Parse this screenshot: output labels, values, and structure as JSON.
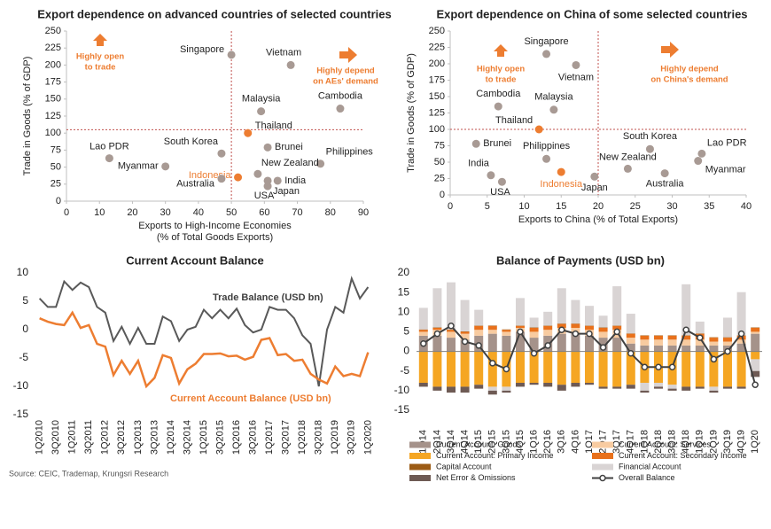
{
  "source": "Source: CEIC, Trademap, Krungsri Research",
  "chart_data": [
    {
      "type": "scatter",
      "title": "Export dependence on advanced countries of selected countries",
      "xlabel": [
        "Exports to High-Income Economies",
        "(% of Total Goods Exports)"
      ],
      "ylabel": "Trade in Goods (% of GDP)",
      "xlim": [
        0,
        90
      ],
      "xticks": [
        0,
        10,
        20,
        30,
        40,
        50,
        60,
        70,
        80,
        90
      ],
      "ylim": [
        0,
        250
      ],
      "yticks": [
        0,
        25,
        50,
        75,
        100,
        125,
        150,
        175,
        200,
        225,
        250
      ],
      "labels": [
        "Singapore",
        "Vietnam",
        "Malaysia",
        "Cambodia",
        "Thailand",
        "Brunei",
        "South Korea",
        "Philippines",
        "Lao PDR",
        "Myanmar",
        "Indonesia",
        "New Zealand",
        "Australia",
        "India",
        "USA",
        "Japan"
      ],
      "x": [
        50,
        68,
        59,
        83,
        55,
        61,
        47,
        77,
        13,
        30,
        52,
        58,
        47,
        64,
        61,
        61
      ],
      "y": [
        215,
        200,
        132,
        136,
        100,
        79,
        70,
        55,
        63,
        51,
        35,
        40,
        33,
        30,
        22,
        30
      ],
      "colors": [
        "#a89a94",
        "#a89a94",
        "#a89a94",
        "#a89a94",
        "#ed7d31",
        "#a89a94",
        "#a89a94",
        "#a89a94",
        "#a89a94",
        "#a89a94",
        "#ed7d31",
        "#a89a94",
        "#a89a94",
        "#a89a94",
        "#a89a94",
        "#a89a94"
      ],
      "label_colors": [
        "#222",
        "#222",
        "#222",
        "#222",
        "#222",
        "#222",
        "#222",
        "#222",
        "#222",
        "#222",
        "#ed7d31",
        "#222",
        "#222",
        "#222",
        "#222",
        "#222"
      ],
      "ref_x": 50,
      "ref_y": 105,
      "annotations": [
        [
          "Highly open",
          "to trade"
        ],
        [
          "Highly depend",
          "on AEs' demand"
        ]
      ]
    },
    {
      "type": "scatter",
      "title": "Export dependence on China of some selected countries",
      "xlabel": [
        "Exports to China (% of Total Exports)"
      ],
      "ylabel": "Trade in Goods (% of GDP)",
      "xlim": [
        0,
        40
      ],
      "xticks": [
        0,
        5,
        10,
        15,
        20,
        25,
        30,
        35,
        40
      ],
      "ylim": [
        0,
        250
      ],
      "yticks": [
        0,
        25,
        50,
        75,
        100,
        125,
        150,
        175,
        200,
        225,
        250
      ],
      "labels": [
        "Singapore",
        "Vietnam",
        "Cambodia",
        "Malaysia",
        "Thailand",
        "Brunei",
        "South Korea",
        "Lao PDR",
        "Philippines",
        "Myanmar",
        "New Zealand",
        "Japan",
        "Australia",
        "India",
        "USA",
        "Indonesia"
      ],
      "x": [
        13,
        17,
        6.5,
        14,
        12,
        3.5,
        27,
        34,
        13,
        33.5,
        24,
        19.5,
        29,
        5.5,
        7,
        15
      ],
      "y": [
        215,
        198,
        135,
        130,
        100,
        78,
        70,
        63,
        55,
        52,
        40,
        28,
        33,
        30,
        20,
        35
      ],
      "colors": [
        "#a89a94",
        "#a89a94",
        "#a89a94",
        "#a89a94",
        "#ed7d31",
        "#a89a94",
        "#a89a94",
        "#a89a94",
        "#a89a94",
        "#a89a94",
        "#a89a94",
        "#a89a94",
        "#a89a94",
        "#a89a94",
        "#a89a94",
        "#ed7d31"
      ],
      "label_colors": [
        "#222",
        "#222",
        "#222",
        "#222",
        "#222",
        "#222",
        "#222",
        "#222",
        "#222",
        "#222",
        "#222",
        "#222",
        "#222",
        "#222",
        "#222",
        "#ed7d31"
      ],
      "ref_x": 20,
      "ref_y": 100,
      "annotations": [
        [
          "Highly open",
          "to trade"
        ],
        [
          "Highly depend",
          "on China's demand"
        ]
      ]
    },
    {
      "type": "line",
      "title": "Current Account Balance",
      "categories": [
        "1Q2010",
        null,
        "3Q2010",
        null,
        "1Q2011",
        null,
        "3Q2011",
        null,
        "1Q2012",
        null,
        "3Q2012",
        null,
        "1Q2013",
        null,
        "3Q2013",
        null,
        "1Q2014",
        null,
        "3Q2014",
        null,
        "1Q2015",
        null,
        "3Q2015",
        null,
        "1Q2016",
        null,
        "3Q2016",
        null,
        "1Q2017",
        null,
        "3Q2017",
        null,
        "1Q2018",
        null,
        "3Q2018",
        null,
        "1Q2019",
        null,
        "3Q2019",
        null,
        "1Q2020"
      ],
      "ylim": [
        -15,
        10
      ],
      "yticks": [
        -15,
        -10,
        -5,
        0,
        5,
        10
      ],
      "series": [
        {
          "name": "Trade Balance (USD bn)",
          "color": "#595959",
          "values": [
            5.5,
            4,
            4,
            8.5,
            7,
            8.3,
            7.5,
            4,
            3,
            -2,
            0.5,
            -2.5,
            0.3,
            -2.5,
            -2.5,
            2.3,
            1.5,
            -2,
            0,
            0.5,
            3.5,
            2,
            3.5,
            2,
            3.7,
            0.8,
            -0.5,
            0,
            4,
            3.5,
            3.5,
            2,
            -1,
            -2.5,
            -10,
            0,
            4,
            3,
            9,
            5.5,
            7.5
          ]
        },
        {
          "name": "Current Account Balance (USD bn)",
          "color": "#ed7d31",
          "values": [
            2,
            1.4,
            1,
            0.8,
            3,
            0.3,
            0.8,
            -2.5,
            -3,
            -8,
            -5.5,
            -7.8,
            -5.5,
            -10,
            -8.5,
            -4.5,
            -5,
            -9.5,
            -7,
            -6,
            -4.3,
            -4.3,
            -4.2,
            -4.7,
            -4.6,
            -5.3,
            -4.8,
            -1.8,
            -1.5,
            -4.5,
            -4.3,
            -5.5,
            -5.3,
            -7.8,
            -8.8,
            -9.5,
            -6.5,
            -8.2,
            -7.8,
            -8.2,
            -4
          ]
        }
      ]
    },
    {
      "type": "stacked_bar",
      "title": "Balance of Payments (USD bn)",
      "categories": [
        "1Q14",
        "2Q14",
        "3Q14",
        "4Q14",
        "1Q15",
        "2Q15",
        "3Q15",
        "4Q15",
        "1Q16",
        "2Q16",
        "3Q16",
        "4Q16",
        "1Q17",
        "2Q17",
        "3Q17",
        "4Q17",
        "1Q18",
        "2Q18",
        "3Q18",
        "4Q18",
        "1Q19",
        "2Q19",
        "3Q19",
        "4Q19",
        "1Q20"
      ],
      "ylim": [
        -15,
        20
      ],
      "yticks": [
        -15,
        -10,
        -5,
        0,
        5,
        10,
        15,
        20
      ],
      "series": [
        {
          "name": "Current Account: Goods",
          "type": "bar",
          "color": "#a5928a",
          "values": [
            4,
            4,
            3.5,
            3,
            4,
            4.5,
            4,
            5,
            3.5,
            4,
            4.5,
            4.5,
            4,
            3.5,
            3.5,
            2,
            1.5,
            1.5,
            1.5,
            1.5,
            1.5,
            1.5,
            1.5,
            2,
            4.5
          ]
        },
        {
          "name": "Current Account: Services",
          "type": "bar",
          "color": "#f8cba0",
          "values": [
            1,
            1.5,
            1.5,
            1.5,
            1.5,
            1,
            1,
            1,
            1.5,
            1.5,
            1.5,
            1.5,
            1.5,
            1.5,
            2,
            1.5,
            1.5,
            1.5,
            1.5,
            1.5,
            1.5,
            1,
            1,
            1,
            0.5
          ]
        },
        {
          "name": "Current Account: Primary Income",
          "type": "bar",
          "color": "#f5a623",
          "values": [
            -8,
            -9,
            -9,
            -9,
            -8.5,
            -9,
            -9,
            -8,
            -8,
            -8,
            -8.5,
            -8,
            -8,
            -9,
            -9,
            -8.5,
            -8,
            -8,
            -8.5,
            -9,
            -9,
            -9,
            -9,
            -9,
            -2
          ]
        },
        {
          "name": "Current Account: Secondary Income",
          "type": "bar",
          "color": "#e8711c",
          "values": [
            0.5,
            0.5,
            0.5,
            0.5,
            1,
            1,
            0.5,
            0.5,
            1,
            1,
            1,
            1,
            1,
            1,
            1,
            1,
            1,
            1,
            1,
            1,
            1.5,
            1,
            1,
            1,
            1
          ]
        },
        {
          "name": "Capital Account",
          "type": "bar",
          "color": "#9c5b14",
          "values": [
            0.1,
            0.1,
            0.1,
            0.1,
            0.1,
            0.1,
            0.1,
            0.1,
            0.1,
            0.1,
            0.1,
            0.1,
            0.1,
            0.1,
            0.1,
            0.1,
            0.1,
            0.1,
            0.1,
            0.1,
            0.1,
            0.1,
            0.1,
            0.1,
            0.1
          ]
        },
        {
          "name": "Financial Account",
          "type": "bar",
          "color": "#d9d4d4",
          "values": [
            5.5,
            10,
            12,
            8,
            4,
            -1,
            -1,
            7,
            2.5,
            3.5,
            9,
            6,
            5,
            3,
            10,
            5,
            -2,
            -1,
            -1,
            13,
            3,
            -1,
            5,
            11,
            -3
          ]
        },
        {
          "name": "Net Error & Omissions",
          "type": "bar",
          "color": "#6e5a54",
          "values": [
            -1,
            -1,
            -1.5,
            -1.5,
            -1,
            -1,
            -0.5,
            -1,
            -0.5,
            -1,
            -1.5,
            -1,
            -0.5,
            -0.5,
            -0.5,
            -1,
            -0.5,
            -0.5,
            -0.5,
            -1,
            -0.5,
            -0.5,
            -0.5,
            -0.5,
            -1.5
          ]
        },
        {
          "name": "Overall Balance",
          "type": "line",
          "color": "#404040",
          "values": [
            2,
            4.5,
            6.5,
            2.5,
            1.5,
            -3,
            -4.5,
            5,
            -0.5,
            1.5,
            5.5,
            4.5,
            4.5,
            1,
            5,
            -0.5,
            -4,
            -4,
            -4,
            5.5,
            3.5,
            -2,
            0,
            4.5,
            -8.5
          ]
        }
      ]
    }
  ]
}
